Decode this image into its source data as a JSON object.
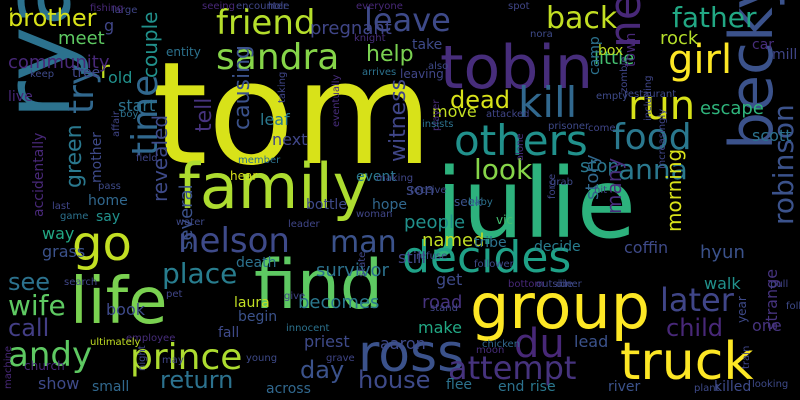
{
  "words": [
    {
      "text": "tom",
      "color": "#d8e219",
      "rotated": false
    },
    {
      "text": "julie",
      "color": "#2db27d",
      "rotated": false
    },
    {
      "text": "ryan",
      "color": "#2c728e",
      "rotated": true
    },
    {
      "text": "family",
      "color": "#addc30",
      "rotated": false
    },
    {
      "text": "find",
      "color": "#5ec962",
      "rotated": false
    },
    {
      "text": "group",
      "color": "#fde725",
      "rotated": false
    },
    {
      "text": "life",
      "color": "#7ad151",
      "rotated": false
    },
    {
      "text": "becky",
      "color": "#3b528b",
      "rotated": true
    },
    {
      "text": "tobin",
      "color": "#472d7b",
      "rotated": false
    },
    {
      "text": "go",
      "color": "#c2df23",
      "rotated": false
    },
    {
      "text": "decides",
      "color": "#1fa187",
      "rotated": false
    },
    {
      "text": "ross",
      "color": "#3b528b",
      "rotated": false
    },
    {
      "text": "truck",
      "color": "#fde725",
      "rotated": false
    },
    {
      "text": "prince",
      "color": "#addc30",
      "rotated": false
    },
    {
      "text": "others",
      "color": "#21918c",
      "rotated": false
    },
    {
      "text": "kill",
      "color": "#31688e",
      "rotated": false
    },
    {
      "text": "friend",
      "color": "#b5de2b",
      "rotated": false
    },
    {
      "text": "nelson",
      "color": "#3e4a89",
      "rotated": false
    },
    {
      "text": "sandra",
      "color": "#86d549",
      "rotated": false
    },
    {
      "text": "time",
      "color": "#31688e",
      "rotated": true
    },
    {
      "text": "girl",
      "color": "#fde725",
      "rotated": false
    },
    {
      "text": "run",
      "color": "#d8e219",
      "rotated": false
    },
    {
      "text": "food",
      "color": "#2a788e",
      "rotated": false
    },
    {
      "text": "back",
      "color": "#c2df23",
      "rotated": false
    },
    {
      "text": "leave",
      "color": "#3e4a89",
      "rotated": false
    },
    {
      "text": "father",
      "color": "#22a884",
      "rotated": false
    },
    {
      "text": "new",
      "color": "#482878",
      "rotated": true
    },
    {
      "text": "andy",
      "color": "#5ec962",
      "rotated": false
    },
    {
      "text": "man",
      "color": "#3b528b",
      "rotated": false
    },
    {
      "text": "du",
      "color": "#482878",
      "rotated": false
    },
    {
      "text": "attempt",
      "color": "#46337e",
      "rotated": false
    },
    {
      "text": "later",
      "color": "#404688",
      "rotated": false
    },
    {
      "text": "place",
      "color": "#287d8e",
      "rotated": false
    },
    {
      "text": "try",
      "color": "#31688e",
      "rotated": true
    },
    {
      "text": "look",
      "color": "#86d549",
      "rotated": false
    },
    {
      "text": "brother",
      "color": "#d8e219",
      "rotated": false
    },
    {
      "text": "wife",
      "color": "#5ec962",
      "rotated": false
    },
    {
      "text": "see",
      "color": "#2c728e",
      "rotated": false
    },
    {
      "text": "call",
      "color": "#433e85",
      "rotated": false
    },
    {
      "text": "house",
      "color": "#3e4a89",
      "rotated": false
    },
    {
      "text": "return",
      "color": "#2c728e",
      "rotated": false
    },
    {
      "text": "robinson",
      "color": "#3b528b",
      "rotated": true
    },
    {
      "text": "anna",
      "color": "#2a788e",
      "rotated": false
    },
    {
      "text": "child",
      "color": "#482878",
      "rotated": false
    },
    {
      "text": "dead",
      "color": "#d8e219",
      "rotated": false
    },
    {
      "text": "help",
      "color": "#7ad151",
      "rotated": false
    },
    {
      "text": "day",
      "color": "#3b528b",
      "rotated": false
    },
    {
      "text": "escape",
      "color": "#2fb47c",
      "rotated": false
    },
    {
      "text": "rock",
      "color": "#b5de2b",
      "rotated": false
    },
    {
      "text": "little",
      "color": "#44bf70",
      "rotated": false
    },
    {
      "text": "green",
      "color": "#2a788e",
      "rotated": true
    },
    {
      "text": "couple",
      "color": "#21918c",
      "rotated": true
    },
    {
      "text": "r",
      "color": "#c2df23",
      "rotated": false
    },
    {
      "text": "community",
      "color": "#482878",
      "rotated": false
    },
    {
      "text": "meet",
      "color": "#5ec962",
      "rotated": false
    },
    {
      "text": "tree",
      "color": "#404688",
      "rotated": false
    },
    {
      "text": "old",
      "color": "#21918c",
      "rotated": false
    },
    {
      "text": "live",
      "color": "#482878",
      "rotated": false
    },
    {
      "text": "start",
      "color": "#2c728e",
      "rotated": false
    },
    {
      "text": "tell",
      "color": "#46337e",
      "rotated": true
    },
    {
      "text": "causing",
      "color": "#3b528b",
      "rotated": true
    },
    {
      "text": "leaf",
      "color": "#2a788e",
      "rotated": false
    },
    {
      "text": "next",
      "color": "#404688",
      "rotated": false
    },
    {
      "text": "witness",
      "color": "#404688",
      "rotated": true
    },
    {
      "text": "son",
      "color": "#3e4a89",
      "rotated": false
    },
    {
      "text": "survivor",
      "color": "#2c728e",
      "rotated": false
    },
    {
      "text": "event",
      "color": "#2a788e",
      "rotated": false
    },
    {
      "text": "people",
      "color": "#21918c",
      "rotated": false
    },
    {
      "text": "named",
      "color": "#c2df23",
      "rotated": false
    },
    {
      "text": "still",
      "color": "#404688",
      "rotated": false
    },
    {
      "text": "get",
      "color": "#3e4a89",
      "rotated": false
    },
    {
      "text": "road",
      "color": "#46337e",
      "rotated": false
    },
    {
      "text": "make",
      "color": "#22a884",
      "rotated": false
    },
    {
      "text": "lead",
      "color": "#3b528b",
      "rotated": false
    },
    {
      "text": "stop",
      "color": "#2a788e",
      "rotated": false
    },
    {
      "text": "story",
      "color": "#31688e",
      "rotated": true
    },
    {
      "text": "many",
      "color": "#472d7b",
      "rotated": true
    },
    {
      "text": "morning",
      "color": "#d8e219",
      "rotated": true
    },
    {
      "text": "hyun",
      "color": "#3b528b",
      "rotated": false
    },
    {
      "text": "walk",
      "color": "#21918c",
      "rotated": false
    },
    {
      "text": "one",
      "color": "#46337e",
      "rotated": false
    },
    {
      "text": "decide",
      "color": "#287d8e",
      "rotated": false
    },
    {
      "text": "coffin",
      "color": "#3e4a89",
      "rotated": false
    },
    {
      "text": "strange",
      "color": "#46337e",
      "rotated": true
    },
    {
      "text": "scott",
      "color": "#2c728e",
      "rotated": false
    },
    {
      "text": "move",
      "color": "#c2df23",
      "rotated": false
    },
    {
      "text": "take",
      "color": "#3e4a89",
      "rotated": false
    },
    {
      "text": "box",
      "color": "#c2df23",
      "rotated": false
    },
    {
      "text": "camp",
      "color": "#2c728e",
      "rotated": true
    },
    {
      "text": "car",
      "color": "#472d7b",
      "rotated": false
    },
    {
      "text": "mill",
      "color": "#404688",
      "rotated": false
    },
    {
      "text": "town",
      "color": "#482878",
      "rotated": true
    },
    {
      "text": "revealed",
      "color": "#3e4a89",
      "rotated": true
    },
    {
      "text": "several",
      "color": "#3b528b",
      "rotated": true
    },
    {
      "text": "mother",
      "color": "#3e4a89",
      "rotated": true
    },
    {
      "text": "home",
      "color": "#31688e",
      "rotated": false
    },
    {
      "text": "say",
      "color": "#21918c",
      "rotated": false
    },
    {
      "text": "way",
      "color": "#22a884",
      "rotated": false
    },
    {
      "text": "grass",
      "color": "#3b528b",
      "rotated": false
    },
    {
      "text": "book",
      "color": "#3e4a89",
      "rotated": false
    },
    {
      "text": "death",
      "color": "#2c728e",
      "rotated": false
    },
    {
      "text": "laura",
      "color": "#c2df23",
      "rotated": false
    },
    {
      "text": "begin",
      "color": "#3b528b",
      "rotated": false
    },
    {
      "text": "fall",
      "color": "#3e4a89",
      "rotated": false
    },
    {
      "text": "becomes",
      "color": "#2a788e",
      "rotated": false
    },
    {
      "text": "priest",
      "color": "#3e4a89",
      "rotated": false
    },
    {
      "text": "aaron",
      "color": "#3e4a89",
      "rotated": false
    },
    {
      "text": "across",
      "color": "#31688e",
      "rotated": false
    },
    {
      "text": "flee",
      "color": "#2c728e",
      "rotated": false
    },
    {
      "text": "end",
      "color": "#2c728e",
      "rotated": false
    },
    {
      "text": "rise",
      "color": "#2a788e",
      "rotated": false
    },
    {
      "text": "river",
      "color": "#3b528b",
      "rotated": false
    },
    {
      "text": "killed",
      "color": "#3e4a89",
      "rotated": false
    },
    {
      "text": "show",
      "color": "#3e4a89",
      "rotated": false
    },
    {
      "text": "small",
      "color": "#31688e",
      "rotated": false
    },
    {
      "text": "entity",
      "color": "#2c728e",
      "rotated": false
    },
    {
      "text": "church",
      "color": "#482878",
      "rotated": false
    },
    {
      "text": "accidentally",
      "color": "#482878",
      "rotated": true
    },
    {
      "text": "tribe",
      "color": "#2c728e",
      "rotated": false
    },
    {
      "text": "vic",
      "color": "#44bf70",
      "rotated": false
    },
    {
      "text": "seek",
      "color": "#3b528b",
      "rotated": false
    },
    {
      "text": "hope",
      "color": "#31688e",
      "rotated": false
    },
    {
      "text": "baby",
      "color": "#2c728e",
      "rotated": false
    },
    {
      "text": "eventually",
      "color": "#472d7b",
      "rotated": true
    },
    {
      "text": "including",
      "color": "#404688",
      "rotated": true
    },
    {
      "text": "increasingly",
      "color": "#404688",
      "rotated": true
    },
    {
      "text": "restaurant",
      "color": "#3e4a89",
      "rotated": false
    },
    {
      "text": "chicken",
      "color": "#31688e",
      "rotated": false
    },
    {
      "text": "grave",
      "color": "#404688",
      "rotated": false
    },
    {
      "text": "young",
      "color": "#3e4a89",
      "rotated": false
    },
    {
      "text": "water",
      "color": "#3e4a89",
      "rotated": false
    },
    {
      "text": "leader",
      "color": "#404688",
      "rotated": false
    },
    {
      "text": "employee",
      "color": "#472d7b",
      "rotated": false
    },
    {
      "text": "ultimately",
      "color": "#c2df23",
      "rotated": false
    },
    {
      "text": "innocent",
      "color": "#2c728e",
      "rotated": false
    },
    {
      "text": "give",
      "color": "#404688",
      "rotated": false
    },
    {
      "text": "bottle",
      "color": "#3e4a89",
      "rotated": false
    },
    {
      "text": "making",
      "color": "#404688",
      "rotated": false
    },
    {
      "text": "hear",
      "color": "#d8e219",
      "rotated": false
    },
    {
      "text": "member",
      "color": "#2c728e",
      "rotated": false
    },
    {
      "text": "game",
      "color": "#2c728e",
      "rotated": false
    },
    {
      "text": "last",
      "color": "#404688",
      "rotated": false
    },
    {
      "text": "pass",
      "color": "#3e4a89",
      "rotated": false
    },
    {
      "text": "boy",
      "color": "#2c728e",
      "rotated": false
    },
    {
      "text": "keep",
      "color": "#3e4a89",
      "rotated": false
    },
    {
      "text": "large",
      "color": "#404688",
      "rotated": false
    },
    {
      "text": "fishing",
      "color": "#482878",
      "rotated": false
    },
    {
      "text": "seeing",
      "color": "#482878",
      "rotated": false
    },
    {
      "text": "encounter",
      "color": "#404688",
      "rotated": false
    },
    {
      "text": "hole",
      "color": "#3e4a89",
      "rotated": false
    },
    {
      "text": "spot",
      "color": "#404688",
      "rotated": false
    },
    {
      "text": "nora",
      "color": "#3e4a89",
      "rotated": false
    },
    {
      "text": "knight",
      "color": "#472d7b",
      "rotated": false
    },
    {
      "text": "also",
      "color": "#3e4a89",
      "rotated": false
    },
    {
      "text": "arrives",
      "color": "#2c728e",
      "rotated": false
    },
    {
      "text": "leaving",
      "color": "#404688",
      "rotated": false
    },
    {
      "text": "everyone",
      "color": "#482878",
      "rotated": false
    },
    {
      "text": "player",
      "color": "#472d7b",
      "rotated": true
    },
    {
      "text": "attacked",
      "color": "#404688",
      "rotated": false
    },
    {
      "text": "prisoner",
      "color": "#3e4a89",
      "rotated": false
    },
    {
      "text": "come",
      "color": "#404688",
      "rotated": false
    },
    {
      "text": "insists",
      "color": "#2c728e",
      "rotated": false
    },
    {
      "text": "receive",
      "color": "#3e4a89",
      "rotated": false
    },
    {
      "text": "alone",
      "color": "#472d7b",
      "rotated": true
    },
    {
      "text": "force",
      "color": "#404688",
      "rotated": true
    },
    {
      "text": "grab",
      "color": "#3e4a89",
      "rotated": false
    },
    {
      "text": "hit",
      "color": "#404688",
      "rotated": false
    },
    {
      "text": "zombie",
      "color": "#404688",
      "rotated": true
    },
    {
      "text": "empty",
      "color": "#3e4a89",
      "rotated": false
    },
    {
      "text": "pull",
      "color": "#404688",
      "rotated": false
    },
    {
      "text": "following",
      "color": "#3e4a89",
      "rotated": false
    },
    {
      "text": "year",
      "color": "#3e4a89",
      "rotated": true
    },
    {
      "text": "train",
      "color": "#404688",
      "rotated": true
    },
    {
      "text": "plant",
      "color": "#3e4a89",
      "rotated": false
    },
    {
      "text": "looking",
      "color": "#3e4a89",
      "rotated": false
    },
    {
      "text": "moon",
      "color": "#472d7b",
      "rotated": false
    },
    {
      "text": "bottom",
      "color": "#482878",
      "rotated": false
    },
    {
      "text": "outside",
      "color": "#404688",
      "rotated": false
    },
    {
      "text": "diner",
      "color": "#3e4a89",
      "rotated": false
    },
    {
      "text": "stand",
      "color": "#404688",
      "rotated": false
    },
    {
      "text": "follower",
      "color": "#3e4a89",
      "rotated": false
    },
    {
      "text": "refuse",
      "color": "#3e4a89",
      "rotated": false
    },
    {
      "text": "state",
      "color": "#404688",
      "rotated": true
    },
    {
      "text": "woman",
      "color": "#404688",
      "rotated": false
    },
    {
      "text": "may",
      "color": "#404688",
      "rotated": false
    },
    {
      "text": "pet",
      "color": "#404688",
      "rotated": false
    },
    {
      "text": "search",
      "color": "#404688",
      "rotated": false
    },
    {
      "text": "machine",
      "color": "#482878",
      "rotated": true
    },
    {
      "text": "night",
      "color": "#404688",
      "rotated": true
    },
    {
      "text": "field",
      "color": "#404688",
      "rotated": false
    },
    {
      "text": "affair",
      "color": "#404688",
      "rotated": true
    },
    {
      "text": "pregnant",
      "color": "#404688",
      "rotated": false
    },
    {
      "text": "taking",
      "color": "#404688",
      "rotated": true
    },
    {
      "text": "g",
      "color": "#404688",
      "rotated": false
    },
    {
      "text": "jo",
      "color": "#404688",
      "rotated": false
    },
    {
      "text": "s",
      "color": "#404688",
      "rotated": false
    }
  ]
}
